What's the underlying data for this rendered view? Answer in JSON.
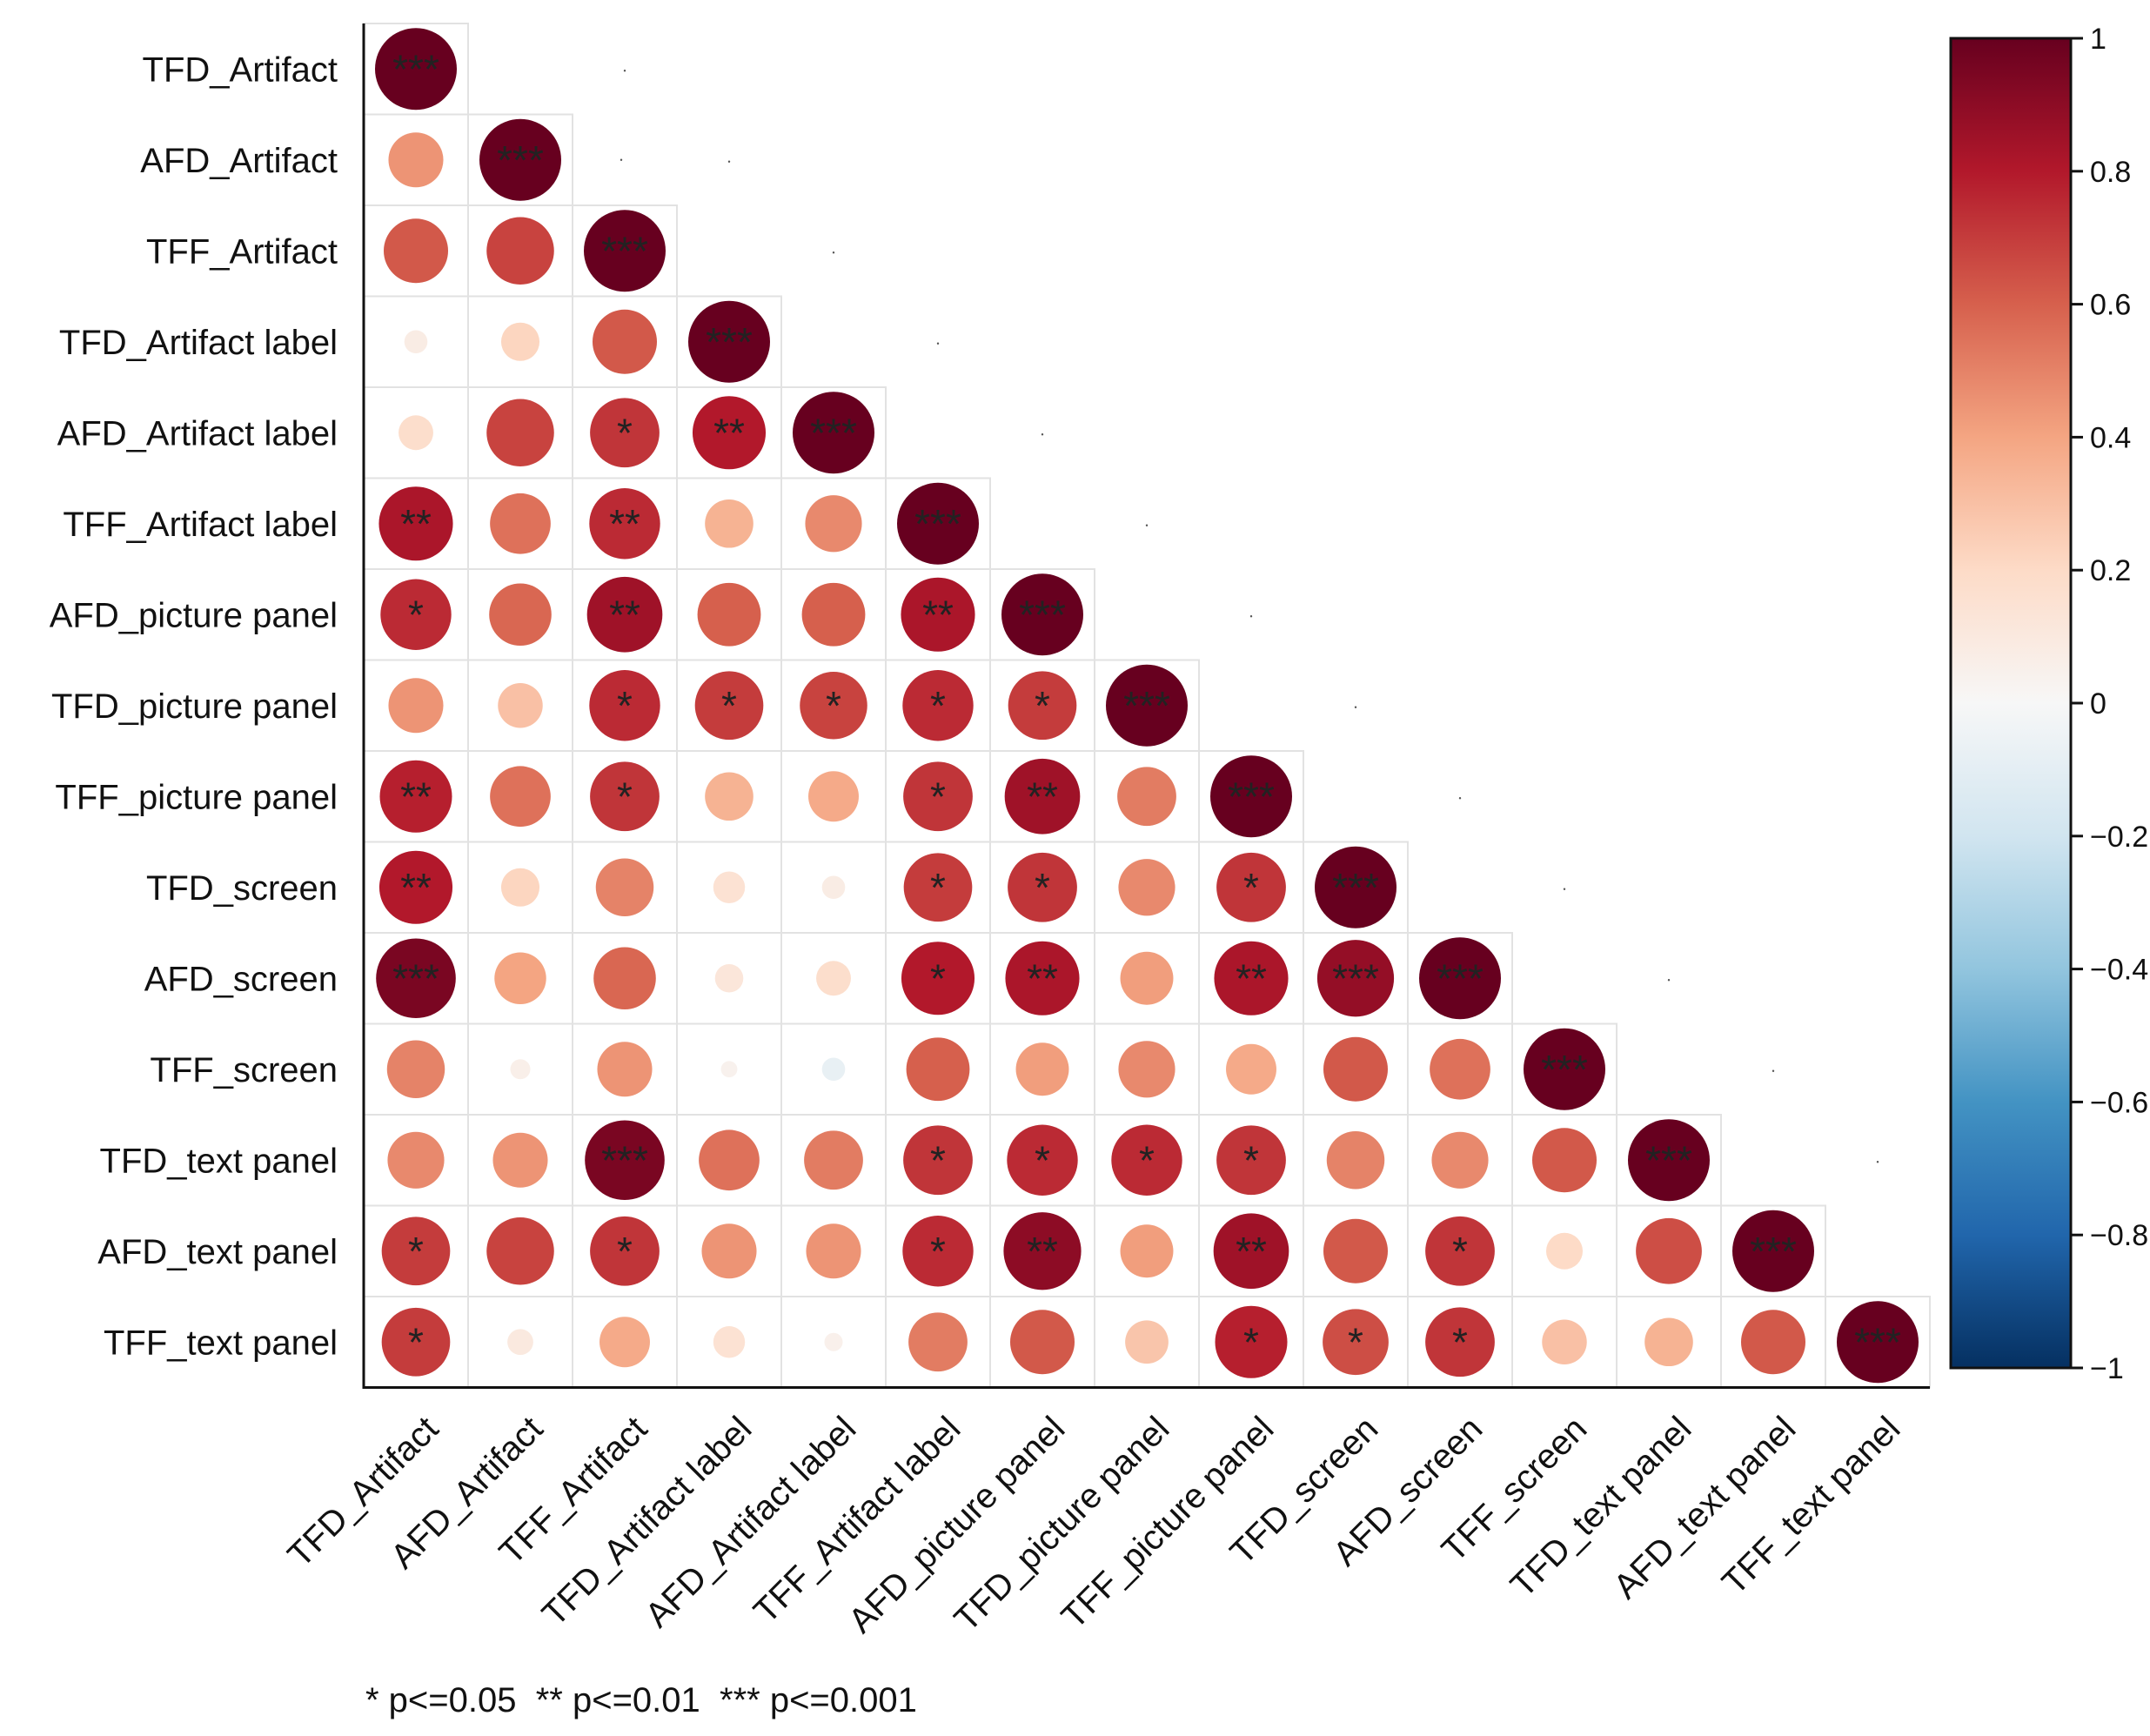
{
  "chart_data": {
    "type": "heatmap",
    "subtype": "correlation-circles-lower-triangle",
    "variables": [
      "TFD_Artifact",
      "AFD_Artifact",
      "TFF_Artifact",
      "TFD_Artifact label",
      "AFD_Artifact label",
      "TFF_Artifact label",
      "AFD_picture panel",
      "TFD_picture panel",
      "TFF_picture panel",
      "TFD_screen",
      "AFD_screen",
      "TFF_screen",
      "TFD_text panel",
      "AFD_text panel",
      "TFF_text panel"
    ],
    "correlation_matrix_lower": [
      [
        1.0
      ],
      [
        0.45,
        1.0
      ],
      [
        0.62,
        0.68,
        1.0
      ],
      [
        0.08,
        0.22,
        0.62,
        1.0
      ],
      [
        0.18,
        0.68,
        0.72,
        0.8,
        1.0
      ],
      [
        0.82,
        0.55,
        0.75,
        0.35,
        0.48,
        1.0
      ],
      [
        0.75,
        0.58,
        0.85,
        0.6,
        0.6,
        0.82,
        1.0
      ],
      [
        0.45,
        0.3,
        0.75,
        0.7,
        0.68,
        0.75,
        0.7,
        1.0
      ],
      [
        0.78,
        0.55,
        0.72,
        0.35,
        0.38,
        0.72,
        0.85,
        0.52,
        1.0
      ],
      [
        0.8,
        0.22,
        0.5,
        0.15,
        0.08,
        0.7,
        0.72,
        0.48,
        0.72,
        1.0
      ],
      [
        0.95,
        0.4,
        0.58,
        0.12,
        0.18,
        0.8,
        0.82,
        0.42,
        0.82,
        0.88,
        1.0
      ],
      [
        0.5,
        0.06,
        0.45,
        0.04,
        -0.08,
        0.6,
        0.42,
        0.48,
        0.38,
        0.62,
        0.55,
        1.0
      ],
      [
        0.48,
        0.45,
        0.95,
        0.55,
        0.52,
        0.72,
        0.75,
        0.75,
        0.72,
        0.5,
        0.48,
        0.62,
        1.0
      ],
      [
        0.7,
        0.68,
        0.72,
        0.45,
        0.45,
        0.75,
        0.9,
        0.42,
        0.85,
        0.62,
        0.72,
        0.2,
        0.65,
        1.0
      ],
      [
        0.7,
        0.1,
        0.38,
        0.15,
        0.05,
        0.52,
        0.62,
        0.28,
        0.78,
        0.65,
        0.72,
        0.3,
        0.35,
        0.62,
        1.0
      ]
    ],
    "significance_lower": [
      [
        "***"
      ],
      [
        "",
        "***"
      ],
      [
        "",
        "",
        "***"
      ],
      [
        "",
        "",
        "",
        "***"
      ],
      [
        "",
        "",
        "*",
        "**",
        "***"
      ],
      [
        "**",
        "",
        "**",
        "",
        "",
        "***"
      ],
      [
        "*",
        "",
        "**",
        "",
        "",
        "**",
        "***"
      ],
      [
        "",
        "",
        "*",
        "*",
        "*",
        "*",
        "*",
        "***"
      ],
      [
        "**",
        "",
        "*",
        "",
        "",
        "*",
        "**",
        "",
        "***"
      ],
      [
        "**",
        "",
        "",
        "",
        "",
        "*",
        "*",
        "",
        "*",
        "***"
      ],
      [
        "***",
        "",
        "",
        "",
        "",
        "*",
        "**",
        "",
        "**",
        "***",
        "***"
      ],
      [
        "",
        "",
        "",
        "",
        "",
        "",
        "",
        "",
        "",
        "",
        "",
        "***"
      ],
      [
        "",
        "",
        "***",
        "",
        "",
        "*",
        "*",
        "*",
        "*",
        "",
        "",
        "",
        "***"
      ],
      [
        "*",
        "",
        "*",
        "",
        "",
        "*",
        "**",
        "",
        "**",
        "",
        "*",
        "",
        "",
        "***"
      ],
      [
        "*",
        "",
        "",
        "",
        "",
        "",
        "",
        "",
        "*",
        "*",
        "*",
        "",
        "",
        "",
        "***"
      ]
    ],
    "colorbar": {
      "range": [
        -1,
        1
      ],
      "tick_labels": [
        "1",
        "0.8",
        "0.6",
        "0.4",
        "0.2",
        "0",
        "−0.2",
        "−0.4",
        "−0.6",
        "−0.8",
        "−1"
      ],
      "colors": [
        "#67001F",
        "#B2182B",
        "#D6604D",
        "#F4A582",
        "#FDDBC7",
        "#F7F7F7",
        "#D1E5F0",
        "#92C5DE",
        "#4393C3",
        "#2166AC",
        "#053061"
      ],
      "placement": "right"
    },
    "legend_note": "* p<=0.05  ** p<=0.01  *** p<=0.001",
    "title": "",
    "xlabel": "",
    "ylabel": ""
  }
}
